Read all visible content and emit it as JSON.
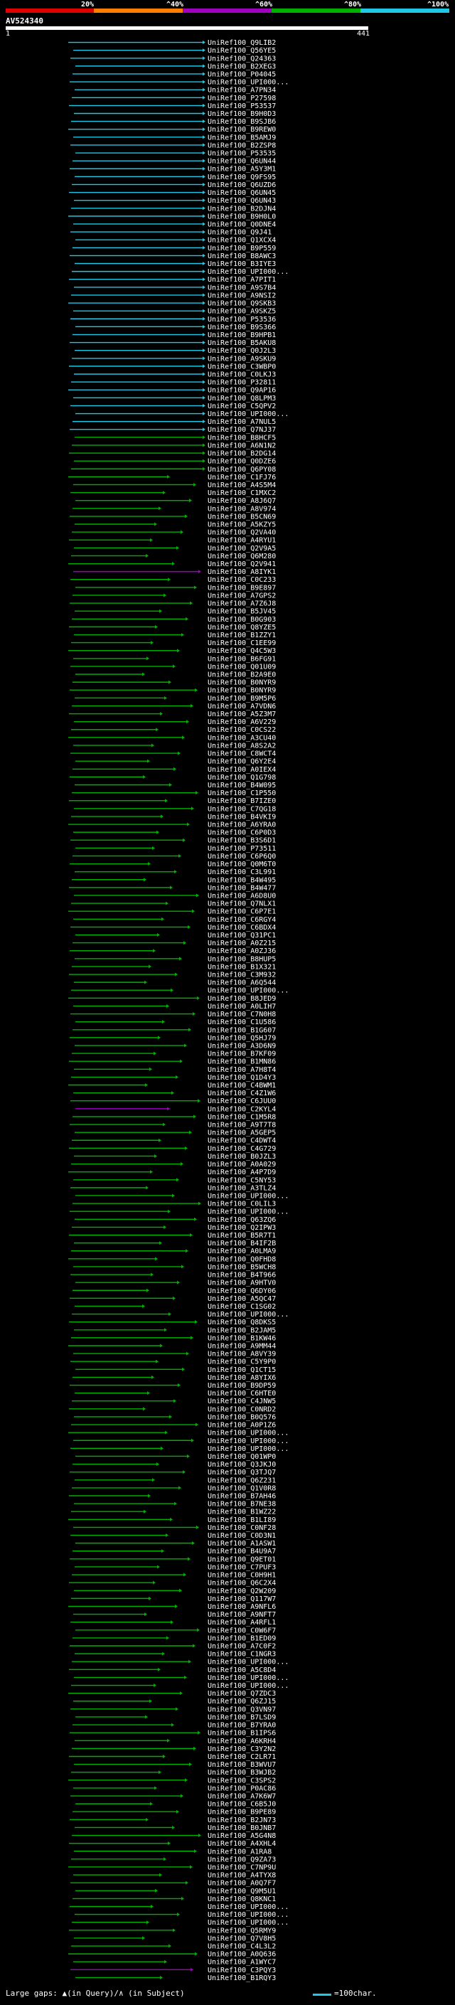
{
  "legend": {
    "labels": [
      "20%",
      "^40%",
      "^60%",
      "^80%",
      "^100%"
    ],
    "colors": [
      "#e00000",
      "#ff8000",
      "#a000c0",
      "#00b000",
      "#1ec8e6"
    ]
  },
  "query": {
    "id": "AV524340",
    "start": "1",
    "end": "441"
  },
  "hits": [
    "UniRef100_Q9LIB2",
    "UniRef100_Q56YE5",
    "UniRef100_Q24363",
    "UniRef100_B2XEG3",
    "UniRef100_P04045",
    "UniRef100_UPI000...",
    "UniRef100_A7PN34",
    "UniRef100_P27598",
    "UniRef100_P53537",
    "UniRef100_B9H0D3",
    "UniRef100_B9SJB6",
    "UniRef100_B9REW0",
    "UniRef100_B5AMJ9",
    "UniRef100_B2ZSP8",
    "UniRef100_P53535",
    "UniRef100_Q6UN44",
    "UniRef100_A5Y3M1",
    "UniRef100_Q9FS95",
    "UniRef100_Q6UZD6",
    "UniRef100_Q6UN45",
    "UniRef100_Q6UN43",
    "UniRef100_B2DJN4",
    "UniRef100_B9H0L0",
    "UniRef100_Q0DNE4",
    "UniRef100_Q9J41",
    "UniRef100_Q1XCX4",
    "UniRef100_B9P559",
    "UniRef100_B8AWC3",
    "UniRef100_B3IYE3",
    "UniRef100_UPI000...",
    "UniRef100_A7PIT1",
    "UniRef100_A9S7B4",
    "UniRef100_A9NSI2",
    "UniRef100_Q9SKB3",
    "UniRef100_A9SKZ5",
    "UniRef100_P53536",
    "UniRef100_B9S366",
    "UniRef100_B9HPB1",
    "UniRef100_B5AKU8",
    "UniRef100_Q0J2L3",
    "UniRef100_A9SKU9",
    "UniRef100_C3WBP0",
    "UniRef100_C0LKJ3",
    "UniRef100_P32811",
    "UniRef100_Q9AP16",
    "UniRef100_Q8LPM3",
    "UniRef100_C5QPV2",
    "UniRef100_UPI000...",
    "UniRef100_A7NUL5",
    "UniRef100_Q7NJ37",
    "UniRef100_B8HCF5",
    "UniRef100_A6N1N2",
    "UniRef100_B2DG14",
    "UniRef100_Q0DZE6",
    "UniRef100_Q6PY08",
    "UniRef100_C1FJ76",
    "UniRef100_A4S5M4",
    "UniRef100_C1MXC2",
    "UniRef100_A8J6Q7",
    "UniRef100_A8V974",
    "UniRef100_B5CN69",
    "UniRef100_A5KZY5",
    "UniRef100_Q2VA40",
    "UniRef100_A4RYU1",
    "UniRef100_Q2V9A5",
    "UniRef100_Q6M280",
    "UniRef100_Q2V941",
    "UniRef100_A8IYK1",
    "UniRef100_C0C233",
    "UniRef100_B9E897",
    "UniRef100_A7GPS2",
    "UniRef100_A7Z6J8",
    "UniRef100_B5JV45",
    "UniRef100_B0G903",
    "UniRef100_Q8YZE5",
    "UniRef100_B1ZZY1",
    "UniRef100_C1EE99",
    "UniRef100_Q4C5W3",
    "UniRef100_B6FG91",
    "UniRef100_Q01U09",
    "UniRef100_B2A9E0",
    "UniRef100_B0NYR9",
    "UniRef100_B0NYR9",
    "UniRef100_B9M5P6",
    "UniRef100_A7VDN6",
    "UniRef100_A5Z3M7",
    "UniRef100_A6V229",
    "UniRef100_C0CS22",
    "UniRef100_A3CU40",
    "UniRef100_A8S2A2",
    "UniRef100_C8WCT4",
    "UniRef100_Q6Y2E4",
    "UniRef100_A0IEX4",
    "UniRef100_Q1G798",
    "UniRef100_B4W095",
    "UniRef100_C1P550",
    "UniRef100_B7IZE0",
    "UniRef100_C7QG18",
    "UniRef100_B4VKI9",
    "UniRef100_A6YRA0",
    "UniRef100_C6P0D3",
    "UniRef100_B3S6D1",
    "UniRef100_P73511",
    "UniRef100_C6P6Q0",
    "UniRef100_Q0M6T0",
    "UniRef100_C3L991",
    "UniRef100_B4W495",
    "UniRef100_B4W477",
    "UniRef100_A6D8U0",
    "UniRef100_Q7NLX1",
    "UniRef100_C6P7E1",
    "UniRef100_C6RGY4",
    "UniRef100_C6BDX4",
    "UniRef100_Q31PC1",
    "UniRef100_A0Z215",
    "UniRef100_A0ZJ36",
    "UniRef100_B8HUP5",
    "UniRef100_B1X321",
    "UniRef100_C3M932",
    "UniRef100_A6Q544",
    "UniRef100_UPI000...",
    "UniRef100_B8JED9",
    "UniRef100_A0LIH7",
    "UniRef100_C7N0H8",
    "UniRef100_C1U586",
    "UniRef100_B1G607",
    "UniRef100_Q5HJ79",
    "UniRef100_A3D6N9",
    "UniRef100_B7KF09",
    "UniRef100_B1MN86",
    "UniRef100_A7H8T4",
    "UniRef100_Q1D4Y3",
    "UniRef100_C4BWM1",
    "UniRef100_C4Z1W6",
    "UniRef100_C6JUU0",
    "UniRef100_C2KYL4",
    "UniRef100_C1M5R8",
    "UniRef100_A9T7T8",
    "UniRef100_A5GEP5",
    "UniRef100_C4DWT4",
    "UniRef100_C4G729",
    "UniRef100_B0JZL3",
    "UniRef100_A0A029",
    "UniRef100_A4P7D9",
    "UniRef100_C5NY53",
    "UniRef100_A3TLZ4",
    "UniRef100_UPI000...",
    "UniRef100_C0LIL3",
    "UniRef100_UPI000...",
    "UniRef100_Q63ZQ6",
    "UniRef100_Q2IPW3",
    "UniRef100_B5R7T1",
    "UniRef100_B4IF2B",
    "UniRef100_A0LMA9",
    "UniRef100_Q0FHD8",
    "UniRef100_B5WCH8",
    "UniRef100_B4T966",
    "UniRef100_A9HTV0",
    "UniRef100_Q6DY06",
    "UniRef100_A5QC47",
    "UniRef100_C1SG02",
    "UniRef100_UPI000...",
    "UniRef100_Q8DKS5",
    "UniRef100_B2JAM5",
    "UniRef100_B1KW46",
    "UniRef100_A9MM44",
    "UniRef100_A8VY39",
    "UniRef100_C5Y9P0",
    "UniRef100_Q1CT15",
    "UniRef100_A8YIX6",
    "UniRef100_B9DP59",
    "UniRef100_C6HTE0",
    "UniRef100_C4JNW5",
    "UniRef100_C0NRD2",
    "UniRef100_B0Q576",
    "UniRef100_A0P1Z6",
    "UniRef100_UPI000...",
    "UniRef100_UPI000...",
    "UniRef100_UPI000...",
    "UniRef100_Q01WP0",
    "UniRef100_Q3JKJ0",
    "UniRef100_Q3TJQ7",
    "UniRef100_Q6Z231",
    "UniRef100_Q1V0R8",
    "UniRef100_B7AH46",
    "UniRef100_B7NE38",
    "UniRef100_B1WZ22",
    "UniRef100_B1LI89",
    "UniRef100_C0NF28",
    "UniRef100_C0D3N1",
    "UniRef100_A1ASW1",
    "UniRef100_B4U9A7",
    "UniRef100_Q9ET01",
    "UniRef100_C7PUF3",
    "UniRef100_C0H9H1",
    "UniRef100_Q6C2X4",
    "UniRef100_Q2W209",
    "UniRef100_Q117W7",
    "UniRef100_A9NFL6",
    "UniRef100_A9NFT7",
    "UniRef100_A4RFL1",
    "UniRef100_C0W6F7",
    "UniRef100_B1ED09",
    "UniRef100_A7C0F2",
    "UniRef100_C1NGR3",
    "UniRef100_UPI000...",
    "UniRef100_A5C8D4",
    "UniRef100_UPI000...",
    "UniRef100_UPI000...",
    "UniRef100_Q7ZDC3",
    "UniRef100_Q6ZJ15",
    "UniRef100_Q3VN97",
    "UniRef100_B7LSD9",
    "UniRef100_B7YRA0",
    "UniRef100_B1IPS6",
    "UniRef100_A6KRH4",
    "UniRef100_C3Y2N2",
    "UniRef100_C2LR71",
    "UniRef100_B3WVU7",
    "UniRef100_B3WJB2",
    "UniRef100_C3SPS2",
    "UniRef100_P0AC86",
    "UniRef100_A7K6W7",
    "UniRef100_C6B5J0",
    "UniRef100_B9PE89",
    "UniRef100_B2JN73",
    "UniRef100_B0JNB7",
    "UniRef100_A5G4N8",
    "UniRef100_A4XHL4",
    "UniRef100_A1RA8",
    "UniRef100_Q9ZA73",
    "UniRef100_C7NP9U",
    "UniRef100_A4TYX8",
    "UniRef100_A0Q7F7",
    "UniRef100_Q9M5U1",
    "UniRef100_Q8KNC1",
    "UniRef100_UPI000...",
    "UniRef100_UPI000...",
    "UniRef100_UPI000...",
    "UniRef100_Q5RMY9",
    "UniRef100_Q7V8H5",
    "UniRef100_C4L3L2",
    "UniRef100_A0Q636",
    "UniRef100_A1WYC7",
    "UniRef100_C3PQY3",
    "UniRef100_B1RQY3"
  ],
  "footer": {
    "text": "Large gaps: ▲(in Query)/∧ (in Subject)",
    "key_label": "=100char."
  }
}
